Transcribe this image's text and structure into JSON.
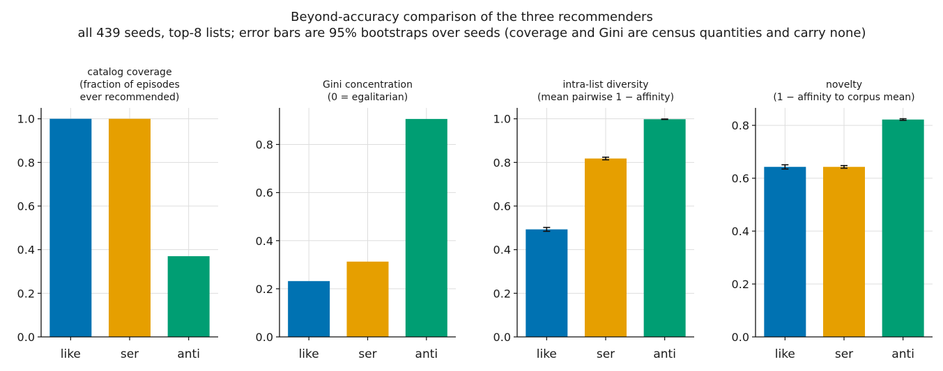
{
  "figure": {
    "title": "Beyond-accuracy comparison of the three recommenders",
    "subtitle": "all 439 seeds, top-8 lists; error bars are 95% bootstraps over seeds (coverage and Gini are census quantities and carry none)"
  },
  "colors": {
    "like": "#0072b2",
    "ser": "#e69f00",
    "anti": "#009e73"
  },
  "chart_data": [
    {
      "type": "bar",
      "title": "catalog coverage\n(fraction of episodes\never recommended)",
      "categories": [
        "like",
        "ser",
        "anti"
      ],
      "values": [
        1.0,
        1.0,
        0.37
      ],
      "errors": null,
      "ylim": [
        0,
        1.05
      ],
      "yticks": [
        0.0,
        0.2,
        0.4,
        0.6,
        0.8,
        1.0
      ],
      "grid": true,
      "xlabel": "",
      "ylabel": ""
    },
    {
      "type": "bar",
      "title": "Gini concentration\n(0 = egalitarian)",
      "categories": [
        "like",
        "ser",
        "anti"
      ],
      "values": [
        0.232,
        0.313,
        0.906
      ],
      "errors": null,
      "ylim": [
        0,
        0.952
      ],
      "yticks": [
        0.0,
        0.2,
        0.4,
        0.6,
        0.8
      ],
      "grid": true,
      "xlabel": "",
      "ylabel": ""
    },
    {
      "type": "bar",
      "title": "intra-list diversity\n(mean pairwise 1 − affinity)",
      "categories": [
        "like",
        "ser",
        "anti"
      ],
      "values": [
        0.493,
        0.818,
        0.998
      ],
      "errors": [
        [
          0.484,
          0.502
        ],
        [
          0.812,
          0.824
        ],
        [
          0.997,
          0.999
        ]
      ],
      "ylim": [
        0,
        1.05
      ],
      "yticks": [
        0.0,
        0.2,
        0.4,
        0.6,
        0.8,
        1.0
      ],
      "grid": true,
      "xlabel": "",
      "ylabel": ""
    },
    {
      "type": "bar",
      "title": "novelty\n(1 − affinity to corpus mean)",
      "categories": [
        "like",
        "ser",
        "anti"
      ],
      "values": [
        0.643,
        0.643,
        0.822
      ],
      "errors": [
        [
          0.635,
          0.651
        ],
        [
          0.638,
          0.648
        ],
        [
          0.819,
          0.825
        ]
      ],
      "ylim": [
        0,
        0.866
      ],
      "yticks": [
        0.0,
        0.2,
        0.4,
        0.6,
        0.8
      ],
      "grid": true,
      "xlabel": "",
      "ylabel": ""
    }
  ]
}
